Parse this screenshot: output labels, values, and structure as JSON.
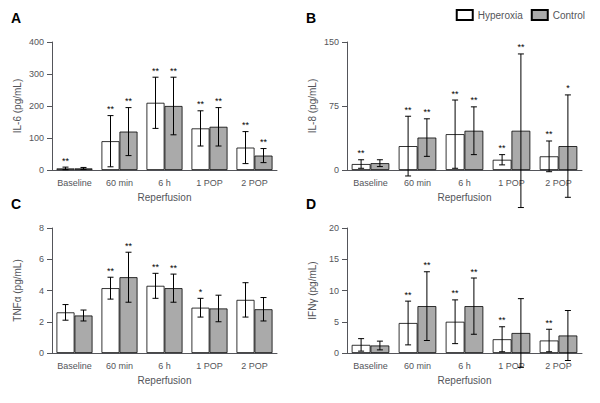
{
  "chart_data": [
    {
      "type": "bar",
      "title": "A",
      "xlabel": "Reperfusion",
      "ylabel": "IL-6 (pg/mL)",
      "categories": [
        "Baseline",
        "60 min",
        "6 h",
        "1 POP",
        "2 POP"
      ],
      "series": [
        {
          "name": "Hyperoxia",
          "color": "#ffffff",
          "values": [
            5,
            90,
            210,
            130,
            70
          ],
          "errors": [
            4,
            80,
            80,
            55,
            50
          ],
          "significance": [
            "**",
            "**",
            "**",
            "**",
            "**"
          ]
        },
        {
          "name": "Control",
          "color": "#aaaaaa",
          "values": [
            5,
            120,
            200,
            135,
            45
          ],
          "errors": [
            3,
            75,
            90,
            60,
            22
          ],
          "significance": [
            null,
            "**",
            "**",
            "**",
            "**"
          ]
        }
      ],
      "ylim": [
        0,
        400
      ],
      "yticks": [
        0,
        100,
        200,
        300,
        400
      ],
      "grid": false
    },
    {
      "type": "bar",
      "title": "B",
      "xlabel": "Reperfusion",
      "ylabel": "IL-8 (pg/mL)",
      "categories": [
        "Baseline",
        "60 min",
        "6 h",
        "1 POP",
        "2 POP"
      ],
      "series": [
        {
          "name": "Hyperoxia",
          "color": "#ffffff",
          "values": [
            7,
            28,
            42,
            12,
            16
          ],
          "errors": [
            5,
            35,
            40,
            6,
            18
          ],
          "significance": [
            "**",
            "**",
            "**",
            "**",
            "**"
          ]
        },
        {
          "name": "Control",
          "color": "#aaaaaa",
          "values": [
            8,
            38,
            46,
            46,
            28
          ],
          "errors": [
            4,
            22,
            28,
            90,
            60
          ],
          "significance": [
            null,
            "**",
            "**",
            "**",
            "*"
          ]
        }
      ],
      "ylim": [
        0,
        150
      ],
      "yticks": [
        0,
        75,
        150
      ],
      "grid": false,
      "legend": "upper right"
    },
    {
      "type": "bar",
      "title": "C",
      "xlabel": "Reperfusion",
      "ylabel": "TNFα (pg/mL)",
      "categories": [
        "Baseline",
        "60 min",
        "6 h",
        "1 POP",
        "2 POP"
      ],
      "series": [
        {
          "name": "Hyperoxia",
          "color": "#ffffff",
          "values": [
            2.6,
            4.15,
            4.3,
            2.9,
            3.4
          ],
          "errors": [
            0.5,
            0.7,
            0.8,
            0.6,
            1.1
          ],
          "significance": [
            null,
            "**",
            "**",
            "*",
            null
          ]
        },
        {
          "name": "Control",
          "color": "#aaaaaa",
          "values": [
            2.4,
            4.85,
            4.15,
            2.85,
            2.8
          ],
          "errors": [
            0.35,
            1.6,
            0.9,
            0.85,
            0.75
          ],
          "significance": [
            null,
            "**",
            "**",
            null,
            null
          ]
        }
      ],
      "ylim": [
        0,
        8
      ],
      "yticks": [
        0,
        2,
        4,
        6,
        8
      ],
      "grid": false
    },
    {
      "type": "bar",
      "title": "D",
      "xlabel": "Reperfusion",
      "ylabel": "IFNγ (pg/mL)",
      "categories": [
        "Baseline",
        "60 min",
        "6 h",
        "1 POP",
        "2 POP"
      ],
      "series": [
        {
          "name": "Hyperoxia",
          "color": "#ffffff",
          "values": [
            1.3,
            4.8,
            5.0,
            2.2,
            2.0
          ],
          "errors": [
            1.0,
            3.5,
            3.5,
            2.0,
            1.8
          ],
          "significance": [
            null,
            "**",
            "**",
            "**",
            "**"
          ]
        },
        {
          "name": "Control",
          "color": "#aaaaaa",
          "values": [
            1.2,
            7.5,
            7.5,
            3.2,
            2.8
          ],
          "errors": [
            0.7,
            5.5,
            4.5,
            5.5,
            4.0
          ],
          "significance": [
            null,
            "**",
            "**",
            null,
            null
          ]
        }
      ],
      "ylim": [
        0,
        20
      ],
      "yticks": [
        0,
        5,
        10,
        15,
        20
      ],
      "grid": false
    }
  ]
}
